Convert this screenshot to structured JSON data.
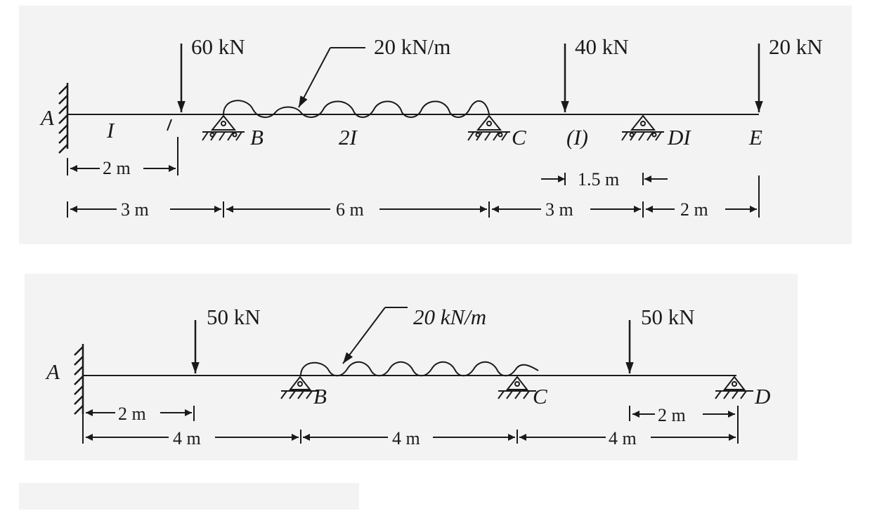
{
  "beam1": {
    "loads": {
      "p60": "60 kN",
      "w20": "20 kN/m",
      "p40": "40 kN",
      "p20": "20 kN"
    },
    "points": {
      "A": "A",
      "B": "B",
      "C": "C",
      "D": "DI",
      "E": "E"
    },
    "moments": {
      "seg1": "I",
      "seg2": "2I",
      "seg3": "(I)"
    },
    "dims": {
      "d2m": "2 m",
      "d15m": "1.5 m",
      "d3m_a": "3 m",
      "d6m": "6 m",
      "d3m_b": "3 m",
      "d2m_b": "2 m"
    }
  },
  "beam2": {
    "loads": {
      "p50a": "50 kN",
      "w20": "20 kN/m",
      "p50b": "50 kN"
    },
    "points": {
      "A": "A",
      "B": "B",
      "C": "C",
      "D": "D"
    },
    "dims": {
      "d2m_a": "2 m",
      "d4m_a": "4 m",
      "d4m_b": "4 m",
      "d4m_c": "4 m",
      "d2m_b": "2 m"
    }
  }
}
